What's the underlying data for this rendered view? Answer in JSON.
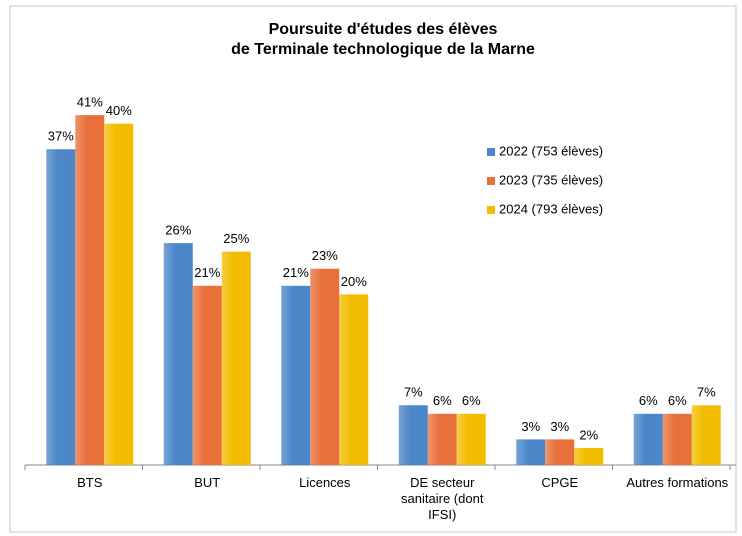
{
  "chart_data": {
    "type": "bar",
    "title": [
      "Poursuite d'études des élèves",
      "de Terminale technologique de la Marne"
    ],
    "categories": [
      "BTS",
      "BUT",
      "Licences",
      "DE secteur sanitaire (dont IFSI)",
      "CPGE",
      "Autres formations"
    ],
    "series": [
      {
        "name": "2022 (753 élèves)",
        "color": "#4a86c8",
        "values": [
          37,
          26,
          21,
          7,
          3,
          6
        ],
        "value_labels": [
          "37%",
          "26%",
          "21%",
          "7%",
          "3%",
          "6%"
        ]
      },
      {
        "name": "2023 (735 élèves)",
        "color": "#e8703a",
        "values": [
          41,
          21,
          23,
          6,
          3,
          6
        ],
        "value_labels": [
          "41%",
          "21%",
          "23%",
          "6%",
          "3%",
          "6%"
        ]
      },
      {
        "name": "2024 (793 élèves)",
        "color": "#f2bd00",
        "values": [
          40,
          25,
          20,
          6,
          2,
          7
        ],
        "value_labels": [
          "40%",
          "25%",
          "20%",
          "6%",
          "2%",
          "7%"
        ]
      }
    ],
    "ylim": [
      0,
      45
    ],
    "legend": "right"
  }
}
